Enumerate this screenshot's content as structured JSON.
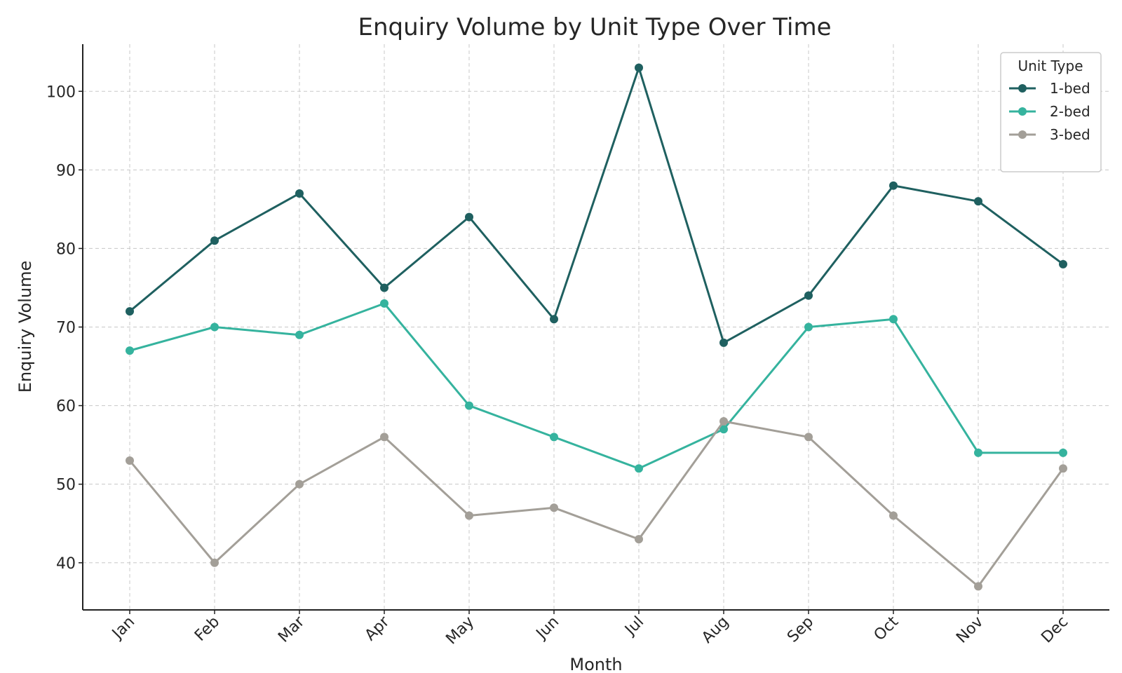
{
  "chart_data": {
    "type": "line",
    "title": "Enquiry Volume by Unit Type Over Time",
    "xlabel": "Month",
    "ylabel": "Enquiry Volume",
    "categories": [
      "Jan",
      "Feb",
      "Mar",
      "Apr",
      "May",
      "Jun",
      "Jul",
      "Aug",
      "Sep",
      "Oct",
      "Nov",
      "Dec"
    ],
    "yticks": [
      40,
      50,
      60,
      70,
      80,
      90,
      100
    ],
    "ylim": [
      34,
      106
    ],
    "grid": true,
    "legend": {
      "title": "Unit Type",
      "position": "top-right"
    },
    "series": [
      {
        "name": "1-bed",
        "color": "#1f6060",
        "values": [
          72,
          81,
          87,
          75,
          84,
          71,
          103,
          68,
          74,
          88,
          86,
          78
        ]
      },
      {
        "name": "2-bed",
        "color": "#35b39e",
        "values": [
          67,
          70,
          69,
          73,
          60,
          56,
          52,
          57,
          70,
          71,
          54,
          54
        ]
      },
      {
        "name": "3-bed",
        "color": "#a39f98",
        "values": [
          53,
          40,
          50,
          56,
          46,
          47,
          43,
          58,
          56,
          46,
          37,
          52
        ]
      }
    ]
  }
}
